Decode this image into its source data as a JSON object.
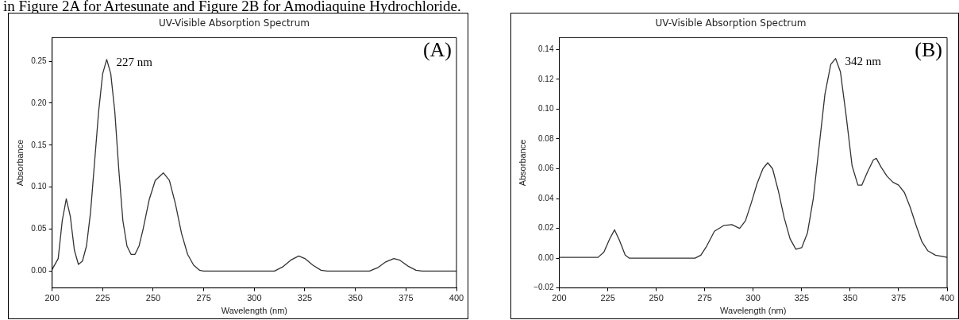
{
  "chart_data": [
    {
      "type": "other",
      "title": "in Figure 2A for Artesunate and Figure 2B for Amodiaquine Hydrochloride."
    },
    {
      "type": "line",
      "title": "UV-Visible Absorption Spectrum",
      "xlabel": "Wavelength (nm)",
      "ylabel": "Absorbance",
      "marker": "none",
      "line_style": "solid",
      "grid": false,
      "xlim": [
        200,
        400
      ],
      "xticks": [
        200,
        225,
        250,
        275,
        300,
        325,
        350,
        375,
        400
      ],
      "ylim": [
        -0.02,
        0.278
      ],
      "yticks": [
        {
          "value": 0,
          "label": "0.00"
        },
        {
          "value": 0.05,
          "label": "0.05"
        },
        {
          "value": 0.1,
          "label": "0.10"
        },
        {
          "value": 0.15,
          "label": "0.15"
        },
        {
          "value": 0.2,
          "label": "0.20"
        },
        {
          "value": 0.25,
          "label": "0.25"
        }
      ],
      "annotations": [
        "(A)",
        {
          "text": "227 nm",
          "x": 227,
          "y": 0.252
        }
      ],
      "series": [
        {
          "color": "#333333",
          "x": [
            200,
            203,
            205,
            207,
            209,
            211,
            213,
            215,
            217,
            219,
            221,
            223,
            225,
            227,
            229,
            231,
            233,
            235,
            237,
            239,
            241,
            243,
            245,
            248,
            251,
            255,
            258,
            261,
            264,
            267,
            270,
            273,
            275,
            310,
            314,
            318,
            322,
            325,
            329,
            333,
            336,
            357,
            361,
            365,
            369,
            372,
            376,
            380,
            383,
            400
          ],
          "values": [
            0.002,
            0.015,
            0.06,
            0.086,
            0.065,
            0.025,
            0.008,
            0.012,
            0.03,
            0.07,
            0.13,
            0.19,
            0.235,
            0.252,
            0.235,
            0.19,
            0.12,
            0.06,
            0.03,
            0.02,
            0.02,
            0.03,
            0.05,
            0.085,
            0.108,
            0.117,
            0.108,
            0.08,
            0.045,
            0.02,
            0.007,
            0.001,
            0,
            0,
            0.005,
            0.013,
            0.018,
            0.015,
            0.007,
            0.001,
            0,
            0,
            0.004,
            0.011,
            0.015,
            0.013,
            0.006,
            0.001,
            0,
            0
          ]
        }
      ]
    },
    {
      "type": "line",
      "title": "UV-Visible Absorption Spectrum",
      "xlabel": "Wavelength (nm)",
      "ylabel": "Absorbance",
      "marker": "none",
      "line_style": "solid",
      "grid": false,
      "xlim": [
        200,
        400
      ],
      "xticks": [
        200,
        225,
        250,
        275,
        300,
        325,
        350,
        375,
        400
      ],
      "ylim": [
        -0.02,
        0.148
      ],
      "yticks": [
        {
          "value": -0.02,
          "label": "−0.02"
        },
        {
          "value": 0,
          "label": "0.00"
        },
        {
          "value": 0.02,
          "label": "0.02"
        },
        {
          "value": 0.04,
          "label": "0.04"
        },
        {
          "value": 0.06,
          "label": "0.06"
        },
        {
          "value": 0.08,
          "label": "0.08"
        },
        {
          "value": 0.1,
          "label": "0.10"
        },
        {
          "value": 0.12,
          "label": "0.12"
        },
        {
          "value": 0.14,
          "label": "0.14"
        }
      ],
      "annotations": [
        "(B)",
        {
          "text": "342 nm",
          "x": 342.5,
          "y": 0.134
        }
      ],
      "series": [
        {
          "color": "#333333",
          "x": [
            200,
            220,
            223,
            226,
            228.5,
            231,
            234,
            236,
            270,
            273,
            276,
            280,
            285,
            289,
            293,
            296,
            299,
            302,
            305,
            307.5,
            310,
            313,
            316,
            319,
            322,
            325,
            328,
            331,
            334,
            337,
            340,
            342.5,
            345,
            348,
            351,
            354,
            356,
            359,
            362,
            363.5,
            366,
            369,
            372,
            375,
            378,
            381,
            384,
            387,
            390,
            394,
            398,
            400
          ],
          "values": [
            0.0005,
            0.0005,
            0.004,
            0.013,
            0.019,
            0.012,
            0.002,
            0,
            0,
            0.002,
            0.008,
            0.018,
            0.022,
            0.0225,
            0.02,
            0.025,
            0.037,
            0.05,
            0.06,
            0.064,
            0.06,
            0.045,
            0.027,
            0.013,
            0.006,
            0.007,
            0.017,
            0.04,
            0.075,
            0.11,
            0.13,
            0.134,
            0.125,
            0.095,
            0.062,
            0.049,
            0.049,
            0.058,
            0.066,
            0.067,
            0.061,
            0.055,
            0.051,
            0.049,
            0.044,
            0.034,
            0.022,
            0.011,
            0.005,
            0.002,
            0.001,
            0.0005
          ]
        }
      ]
    }
  ]
}
